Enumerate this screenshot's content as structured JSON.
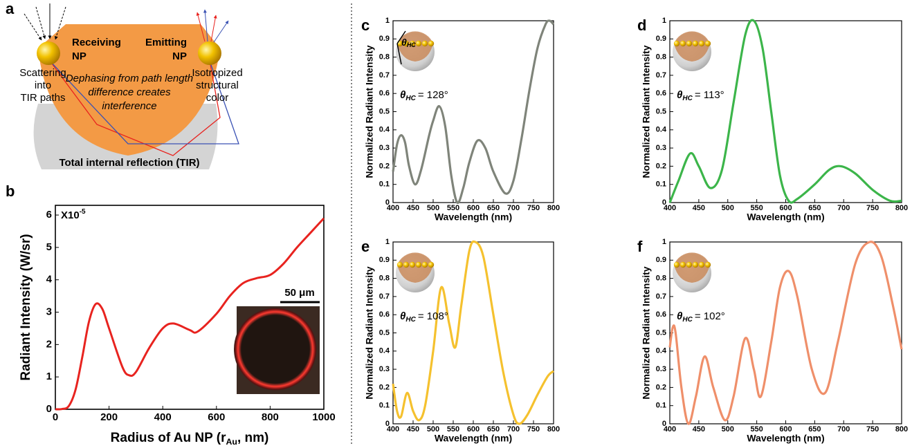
{
  "diagram": {
    "label": "a",
    "receiving": [
      "Receiving",
      "NP"
    ],
    "emitting": [
      "Emitting",
      "NP"
    ],
    "scattering": [
      "Scattering",
      "into",
      "TIR paths"
    ],
    "dephasing": [
      "Dephasing from path length",
      "difference creates",
      "interference"
    ],
    "isotropized": [
      "Isotropized",
      "structural",
      "color"
    ],
    "tir": "Total internal reflection (TIR)"
  },
  "chart_data": [
    {
      "type": "line",
      "label": "b",
      "xlabel": {
        "text": "Radius of Au NP (r",
        "subscript": "Au",
        "suffix": ", nm)"
      },
      "ylabel": "Radiant Intensity (W/sr)",
      "annotation": {
        "text": "X10",
        "superscript": "-5"
      },
      "scale_bar": "50 μm",
      "color": "#e8231f",
      "x": [
        0,
        25,
        50,
        75,
        100,
        125,
        150,
        175,
        200,
        250,
        275,
        300,
        350,
        400,
        440,
        500,
        530,
        600,
        650,
        700,
        750,
        800,
        850,
        900,
        950,
        1000
      ],
      "values": [
        0,
        0.01,
        0.1,
        0.6,
        1.6,
        2.7,
        3.25,
        3.1,
        2.5,
        1.3,
        1.05,
        1.15,
        1.9,
        2.5,
        2.65,
        2.45,
        2.4,
        2.95,
        3.5,
        3.9,
        4.05,
        4.15,
        4.5,
        5.0,
        5.45,
        5.9
      ],
      "xlim": [
        0,
        1000
      ],
      "xticks": [
        0,
        200,
        400,
        600,
        800,
        1000
      ],
      "ylim": [
        0,
        6.3
      ],
      "yticks": [
        0,
        1,
        2,
        3,
        4,
        5,
        6
      ]
    },
    {
      "type": "line",
      "label": "c",
      "xlabel": "Wavelength (nm)",
      "ylabel": "Normalized Radiant Intensity",
      "annotation": {
        "symbol": "θ",
        "subscript": "HC",
        "text": "= 128°"
      },
      "color": "#7f847a",
      "x": [
        400,
        410,
        420,
        430,
        440,
        455,
        470,
        490,
        500,
        515,
        530,
        545,
        560,
        575,
        590,
        610,
        630,
        650,
        680,
        700,
        720,
        740,
        760,
        780,
        790,
        800
      ],
      "values": [
        0.17,
        0.32,
        0.37,
        0.33,
        0.2,
        0.1,
        0.18,
        0.37,
        0.45,
        0.53,
        0.42,
        0.15,
        0.0,
        0.08,
        0.22,
        0.34,
        0.3,
        0.17,
        0.05,
        0.12,
        0.35,
        0.62,
        0.85,
        0.98,
        1.0,
        0.98
      ],
      "xlim": [
        400,
        800
      ],
      "xticks": [
        400,
        450,
        500,
        550,
        600,
        650,
        700,
        750,
        800
      ],
      "ylim": [
        0,
        1
      ],
      "yticks": [
        0,
        0.1,
        0.2,
        0.3,
        0.4,
        0.5,
        0.6,
        0.7,
        0.8,
        0.9,
        1
      ]
    },
    {
      "type": "line",
      "label": "d",
      "xlabel": "Wavelength (nm)",
      "ylabel": "Normalized Radiant Intensity",
      "annotation": {
        "symbol": "θ",
        "subscript": "HC",
        "text": "= 113°"
      },
      "color": "#3cb54a",
      "x": [
        400,
        415,
        435,
        450,
        470,
        490,
        510,
        530,
        545,
        560,
        575,
        590,
        605,
        620,
        650,
        675,
        695,
        720,
        750,
        780,
        800
      ],
      "values": [
        0.0,
        0.12,
        0.27,
        0.2,
        0.08,
        0.18,
        0.55,
        0.92,
        1.0,
        0.85,
        0.5,
        0.15,
        0.01,
        0.02,
        0.1,
        0.18,
        0.2,
        0.16,
        0.07,
        0.01,
        0.01
      ],
      "xlim": [
        400,
        800
      ],
      "xticks": [
        400,
        450,
        500,
        550,
        600,
        650,
        700,
        750,
        800
      ],
      "ylim": [
        0,
        1
      ],
      "yticks": [
        0,
        0.1,
        0.2,
        0.3,
        0.4,
        0.5,
        0.6,
        0.7,
        0.8,
        0.9,
        1
      ]
    },
    {
      "type": "line",
      "label": "e",
      "xlabel": "Wavelength (nm)",
      "ylabel": "Normalized Radiant Intensity",
      "annotation": {
        "symbol": "θ",
        "subscript": "HC",
        "text": "= 108°"
      },
      "color": "#f5c12e",
      "x": [
        400,
        410,
        420,
        435,
        450,
        465,
        480,
        500,
        520,
        540,
        555,
        570,
        590,
        605,
        625,
        650,
        675,
        700,
        715,
        735,
        760,
        785,
        800
      ],
      "values": [
        0.22,
        0.07,
        0.04,
        0.17,
        0.07,
        0.02,
        0.1,
        0.4,
        0.75,
        0.55,
        0.42,
        0.65,
        0.95,
        1.0,
        0.92,
        0.6,
        0.28,
        0.05,
        0.0,
        0.05,
        0.16,
        0.26,
        0.29
      ],
      "xlim": [
        400,
        800
      ],
      "xticks": [
        400,
        450,
        500,
        550,
        600,
        650,
        700,
        750,
        800
      ],
      "ylim": [
        0,
        1
      ],
      "yticks": [
        0,
        0.1,
        0.2,
        0.3,
        0.4,
        0.5,
        0.6,
        0.7,
        0.8,
        0.9,
        1
      ]
    },
    {
      "type": "line",
      "label": "f",
      "xlabel": "Wavelength (nm)",
      "ylabel": "Normalized Radiant Intensity",
      "annotation": {
        "symbol": "θ",
        "subscript": "HC",
        "text": "= 102°"
      },
      "color": "#ef8f6a",
      "x": [
        400,
        405,
        410,
        420,
        432,
        445,
        460,
        475,
        495,
        510,
        530,
        545,
        557,
        575,
        590,
        605,
        620,
        645,
        668,
        690,
        720,
        745,
        765,
        785,
        800
      ],
      "values": [
        0.42,
        0.53,
        0.5,
        0.2,
        0.0,
        0.15,
        0.37,
        0.2,
        0.02,
        0.15,
        0.47,
        0.3,
        0.15,
        0.45,
        0.75,
        0.84,
        0.7,
        0.3,
        0.17,
        0.45,
        0.88,
        1.0,
        0.92,
        0.65,
        0.41
      ],
      "xlim": [
        400,
        800
      ],
      "xticks": [
        400,
        450,
        500,
        550,
        600,
        650,
        700,
        750,
        800
      ],
      "ylim": [
        0,
        1
      ],
      "yticks": [
        0,
        0.1,
        0.2,
        0.3,
        0.4,
        0.5,
        0.6,
        0.7,
        0.8,
        0.9,
        1
      ]
    }
  ]
}
